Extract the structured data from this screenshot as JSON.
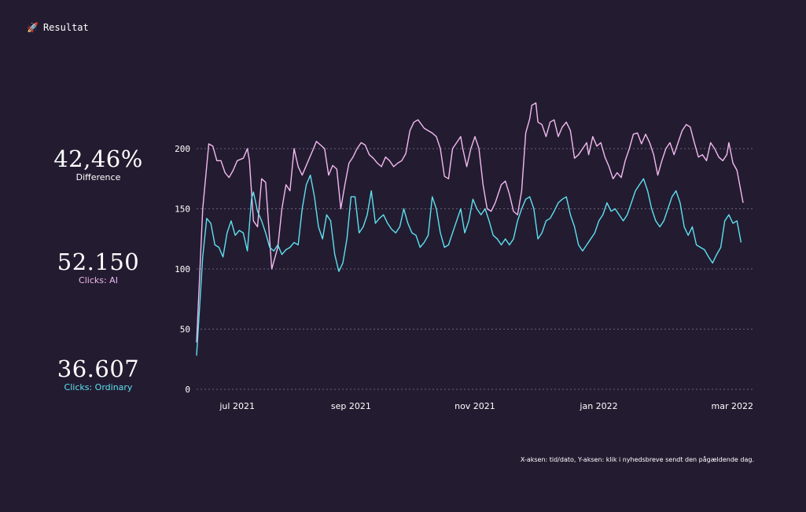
{
  "header": {
    "icon": "rocket-icon",
    "title": "Resultat"
  },
  "stats": {
    "difference": {
      "value": "42,46%",
      "label": "Difference",
      "color": "#ffffff"
    },
    "ai": {
      "value": "52.150",
      "label": "Clicks: AI",
      "color": "#f3b9ef"
    },
    "ordinary": {
      "value": "36.607",
      "label": "Clicks: Ordinary",
      "color": "#5ee0ef"
    }
  },
  "footnote": "X-aksen: tid/dato, Y-aksen: klik i nyhedsbreve sendt den pågældende dag.",
  "colors": {
    "background": "#231c31",
    "ai": "#f3b9ef",
    "ordinary": "#5ee0ef",
    "grid": "#6a6478"
  },
  "chart_data": {
    "type": "line",
    "xlabel": "",
    "ylabel": "",
    "ylim": [
      0,
      200
    ],
    "yticks": [
      0,
      50,
      100,
      150,
      200
    ],
    "xlim_days": [
      0,
      269
    ],
    "xtick_days": [
      20,
      76,
      137,
      198,
      257
    ],
    "xtick_labels": [
      "jul 2021",
      "sep 2021",
      "nov 2021",
      "jan 2022",
      "mar 2022"
    ],
    "grid": true,
    "legend": "none",
    "series": [
      {
        "name": "Clicks: AI",
        "color": "#f3b9ef",
        "points": [
          [
            0,
            39
          ],
          [
            3,
            150
          ],
          [
            6,
            204
          ],
          [
            8,
            202
          ],
          [
            10,
            190
          ],
          [
            12,
            190
          ],
          [
            14,
            180
          ],
          [
            16,
            176
          ],
          [
            18,
            182
          ],
          [
            20,
            190
          ],
          [
            23,
            192
          ],
          [
            25,
            200
          ],
          [
            26,
            190
          ],
          [
            28,
            140
          ],
          [
            30,
            135
          ],
          [
            32,
            175
          ],
          [
            34,
            172
          ],
          [
            37,
            100
          ],
          [
            40,
            118
          ],
          [
            42,
            150
          ],
          [
            44,
            170
          ],
          [
            46,
            165
          ],
          [
            48,
            200
          ],
          [
            50,
            185
          ],
          [
            52,
            178
          ],
          [
            55,
            190
          ],
          [
            57,
            198
          ],
          [
            59,
            206
          ],
          [
            61,
            203
          ],
          [
            63,
            200
          ],
          [
            65,
            178
          ],
          [
            67,
            186
          ],
          [
            69,
            183
          ],
          [
            71,
            150
          ],
          [
            73,
            170
          ],
          [
            75,
            188
          ],
          [
            77,
            193
          ],
          [
            79,
            200
          ],
          [
            81,
            205
          ],
          [
            83,
            203
          ],
          [
            85,
            195
          ],
          [
            87,
            192
          ],
          [
            89,
            188
          ],
          [
            91,
            185
          ],
          [
            93,
            193
          ],
          [
            95,
            190
          ],
          [
            97,
            185
          ],
          [
            99,
            188
          ],
          [
            101,
            190
          ],
          [
            103,
            196
          ],
          [
            105,
            215
          ],
          [
            107,
            222
          ],
          [
            109,
            224
          ],
          [
            112,
            217
          ],
          [
            114,
            215
          ],
          [
            116,
            213
          ],
          [
            118,
            210
          ],
          [
            120,
            200
          ],
          [
            122,
            177
          ],
          [
            124,
            175
          ],
          [
            126,
            200
          ],
          [
            128,
            205
          ],
          [
            130,
            210
          ],
          [
            131,
            200
          ],
          [
            133,
            185
          ],
          [
            135,
            200
          ],
          [
            137,
            210
          ],
          [
            139,
            200
          ],
          [
            141,
            170
          ],
          [
            143,
            150
          ],
          [
            145,
            148
          ],
          [
            147,
            155
          ],
          [
            150,
            170
          ],
          [
            152,
            173
          ],
          [
            154,
            162
          ],
          [
            156,
            148
          ],
          [
            158,
            145
          ],
          [
            160,
            165
          ],
          [
            162,
            213
          ],
          [
            164,
            225
          ],
          [
            165,
            236
          ],
          [
            167,
            238
          ],
          [
            168,
            222
          ],
          [
            170,
            220
          ],
          [
            172,
            210
          ],
          [
            174,
            222
          ],
          [
            176,
            224
          ],
          [
            178,
            210
          ],
          [
            180,
            218
          ],
          [
            182,
            222
          ],
          [
            184,
            215
          ],
          [
            186,
            192
          ],
          [
            188,
            195
          ],
          [
            190,
            200
          ],
          [
            192,
            205
          ],
          [
            193,
            195
          ],
          [
            195,
            210
          ],
          [
            197,
            202
          ],
          [
            199,
            205
          ],
          [
            201,
            193
          ],
          [
            203,
            185
          ],
          [
            205,
            175
          ],
          [
            207,
            180
          ],
          [
            209,
            176
          ],
          [
            211,
            190
          ],
          [
            213,
            200
          ],
          [
            215,
            212
          ],
          [
            217,
            213
          ],
          [
            219,
            204
          ],
          [
            221,
            212
          ],
          [
            223,
            205
          ],
          [
            225,
            195
          ],
          [
            227,
            178
          ],
          [
            229,
            190
          ],
          [
            231,
            200
          ],
          [
            233,
            205
          ],
          [
            235,
            195
          ],
          [
            237,
            205
          ],
          [
            239,
            215
          ],
          [
            241,
            220
          ],
          [
            243,
            218
          ],
          [
            245,
            205
          ],
          [
            247,
            193
          ],
          [
            249,
            195
          ],
          [
            251,
            190
          ],
          [
            253,
            205
          ],
          [
            255,
            200
          ],
          [
            257,
            193
          ],
          [
            259,
            190
          ],
          [
            261,
            195
          ],
          [
            262,
            205
          ],
          [
            264,
            188
          ],
          [
            266,
            182
          ],
          [
            269,
            155
          ]
        ]
      },
      {
        "name": "Clicks: Ordinary",
        "color": "#5ee0ef",
        "points": [
          [
            0,
            28
          ],
          [
            3,
            110
          ],
          [
            5,
            142
          ],
          [
            7,
            138
          ],
          [
            9,
            120
          ],
          [
            11,
            118
          ],
          [
            13,
            110
          ],
          [
            15,
            130
          ],
          [
            17,
            140
          ],
          [
            19,
            128
          ],
          [
            21,
            132
          ],
          [
            23,
            130
          ],
          [
            25,
            115
          ],
          [
            27,
            158
          ],
          [
            28,
            164
          ],
          [
            30,
            148
          ],
          [
            32,
            140
          ],
          [
            34,
            130
          ],
          [
            36,
            118
          ],
          [
            38,
            115
          ],
          [
            40,
            120
          ],
          [
            42,
            112
          ],
          [
            44,
            116
          ],
          [
            46,
            118
          ],
          [
            48,
            122
          ],
          [
            50,
            120
          ],
          [
            52,
            150
          ],
          [
            54,
            170
          ],
          [
            56,
            178
          ],
          [
            58,
            160
          ],
          [
            60,
            135
          ],
          [
            62,
            125
          ],
          [
            64,
            145
          ],
          [
            66,
            140
          ],
          [
            68,
            112
          ],
          [
            70,
            98
          ],
          [
            72,
            105
          ],
          [
            74,
            125
          ],
          [
            76,
            160
          ],
          [
            78,
            160
          ],
          [
            80,
            130
          ],
          [
            82,
            135
          ],
          [
            84,
            145
          ],
          [
            86,
            165
          ],
          [
            88,
            138
          ],
          [
            90,
            142
          ],
          [
            92,
            145
          ],
          [
            94,
            138
          ],
          [
            96,
            133
          ],
          [
            98,
            130
          ],
          [
            100,
            135
          ],
          [
            102,
            150
          ],
          [
            104,
            138
          ],
          [
            106,
            130
          ],
          [
            108,
            128
          ],
          [
            110,
            118
          ],
          [
            112,
            122
          ],
          [
            114,
            128
          ],
          [
            116,
            160
          ],
          [
            118,
            150
          ],
          [
            120,
            130
          ],
          [
            122,
            118
          ],
          [
            124,
            120
          ],
          [
            126,
            130
          ],
          [
            128,
            140
          ],
          [
            130,
            150
          ],
          [
            132,
            130
          ],
          [
            134,
            140
          ],
          [
            136,
            158
          ],
          [
            138,
            150
          ],
          [
            140,
            145
          ],
          [
            142,
            150
          ],
          [
            144,
            140
          ],
          [
            146,
            128
          ],
          [
            148,
            125
          ],
          [
            150,
            120
          ],
          [
            152,
            125
          ],
          [
            154,
            120
          ],
          [
            156,
            125
          ],
          [
            158,
            140
          ],
          [
            160,
            150
          ],
          [
            162,
            158
          ],
          [
            164,
            160
          ],
          [
            166,
            150
          ],
          [
            168,
            125
          ],
          [
            170,
            130
          ],
          [
            172,
            140
          ],
          [
            174,
            142
          ],
          [
            176,
            148
          ],
          [
            178,
            155
          ],
          [
            180,
            158
          ],
          [
            182,
            160
          ],
          [
            184,
            145
          ],
          [
            186,
            135
          ],
          [
            188,
            120
          ],
          [
            190,
            115
          ],
          [
            192,
            120
          ],
          [
            194,
            125
          ],
          [
            196,
            130
          ],
          [
            198,
            140
          ],
          [
            200,
            145
          ],
          [
            202,
            155
          ],
          [
            204,
            148
          ],
          [
            206,
            150
          ],
          [
            208,
            145
          ],
          [
            210,
            140
          ],
          [
            212,
            145
          ],
          [
            214,
            155
          ],
          [
            216,
            165
          ],
          [
            218,
            170
          ],
          [
            220,
            175
          ],
          [
            222,
            165
          ],
          [
            224,
            150
          ],
          [
            226,
            140
          ],
          [
            228,
            135
          ],
          [
            230,
            140
          ],
          [
            232,
            150
          ],
          [
            234,
            160
          ],
          [
            236,
            165
          ],
          [
            238,
            155
          ],
          [
            240,
            135
          ],
          [
            242,
            128
          ],
          [
            244,
            135
          ],
          [
            246,
            120
          ],
          [
            248,
            118
          ],
          [
            250,
            116
          ],
          [
            252,
            110
          ],
          [
            254,
            105
          ],
          [
            256,
            112
          ],
          [
            258,
            118
          ],
          [
            260,
            140
          ],
          [
            262,
            145
          ],
          [
            264,
            138
          ],
          [
            266,
            140
          ],
          [
            268,
            122
          ]
        ]
      }
    ]
  }
}
